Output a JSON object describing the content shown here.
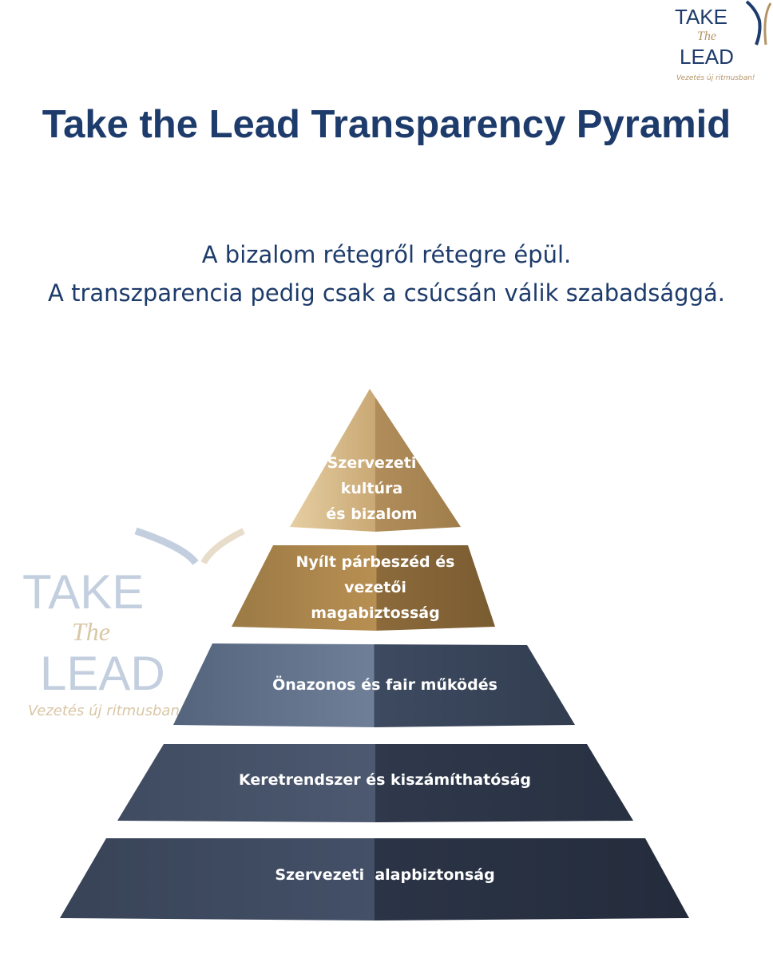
{
  "logo": {
    "line1": "TAKE",
    "the": "The",
    "line2": "LEAD",
    "tagline": "Vezetés új ritmusban!"
  },
  "title": "Take the Lead Transparency Pyramid",
  "subtitle": [
    "A bizalom rétegről rétegre épül.",
    "A transzparencia pedig csak a csúcsán válik szabadsággá."
  ],
  "pyramid": {
    "levels": [
      {
        "lines": [
          "Szervezeti",
          "kultúra",
          "és bizalom"
        ],
        "color": "#c9a874"
      },
      {
        "lines": [
          "Nyílt párbeszéd és",
          "vezetői",
          "magabiztosság"
        ],
        "color": "#a8824a"
      },
      {
        "lines": [
          "Önazonos és fair működés"
        ],
        "color": "#4d5e78"
      },
      {
        "lines": [
          "Keretrendszer és kiszámíthatóság"
        ],
        "color": "#3a475c"
      },
      {
        "lines": [
          "Szervezeti  alapbiztonság"
        ],
        "color": "#323d50"
      }
    ]
  }
}
